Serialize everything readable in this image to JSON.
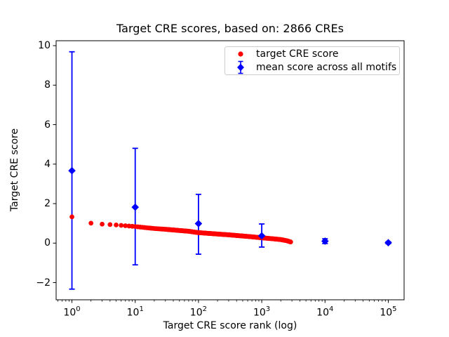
{
  "figure": {
    "background_color": "#ffffff",
    "axes_border_color": "#000000",
    "red_color": "#ff0000",
    "blue_color": "#0000ff"
  },
  "chart_data": {
    "type": "scatter",
    "title": "Target CRE scores, based on: 2866 CREs",
    "xlabel": "Target CRE score rank (log)",
    "ylabel": "Target CRE score",
    "xscale": "log",
    "xlim_log10": [
      -0.25,
      5.25
    ],
    "ylim": [
      -2.87,
      10.25
    ],
    "xticks": [
      1,
      10,
      100,
      1000,
      10000,
      100000
    ],
    "x_tick_format": "10^exponent",
    "yticks": [
      -2,
      0,
      2,
      4,
      6,
      8,
      10
    ],
    "grid": false,
    "legend_position": "upper right",
    "series": [
      {
        "name": "target CRE score",
        "marker": "circle",
        "color": "#ff0000",
        "n_points": 2866,
        "description": "one red dot per CRE rank 1..2866, score decreasing with log rank",
        "trend_rank_vs_score": [
          [
            1,
            1.33
          ],
          [
            2,
            1.01
          ],
          [
            3,
            0.96
          ],
          [
            4,
            0.94
          ],
          [
            5,
            0.92
          ],
          [
            7,
            0.88
          ],
          [
            10,
            0.84
          ],
          [
            15,
            0.78
          ],
          [
            20,
            0.74
          ],
          [
            30,
            0.7
          ],
          [
            50,
            0.64
          ],
          [
            70,
            0.6
          ],
          [
            100,
            0.53
          ],
          [
            150,
            0.49
          ],
          [
            200,
            0.46
          ],
          [
            300,
            0.42
          ],
          [
            500,
            0.36
          ],
          [
            700,
            0.32
          ],
          [
            1000,
            0.27
          ],
          [
            1500,
            0.22
          ],
          [
            2000,
            0.18
          ],
          [
            2500,
            0.12
          ],
          [
            2866,
            0.06
          ]
        ]
      },
      {
        "name": "mean score across all motifs",
        "marker": "diamond",
        "color": "#0000ff",
        "error_bars": true,
        "points": [
          {
            "rank": 1,
            "mean": 3.67,
            "err_minus": 6.0,
            "err_plus": 6.02
          },
          {
            "rank": 10,
            "mean": 1.82,
            "err_minus": 2.92,
            "err_plus": 2.98
          },
          {
            "rank": 100,
            "mean": 0.99,
            "err_minus": 1.55,
            "err_plus": 1.48
          },
          {
            "rank": 1000,
            "mean": 0.37,
            "err_minus": 0.57,
            "err_plus": 0.6
          },
          {
            "rank": 10000,
            "mean": 0.1,
            "err_minus": 0.12,
            "err_plus": 0.12
          },
          {
            "rank": 100000,
            "mean": 0.02,
            "err_minus": 0.05,
            "err_plus": 0.05
          }
        ]
      }
    ]
  }
}
